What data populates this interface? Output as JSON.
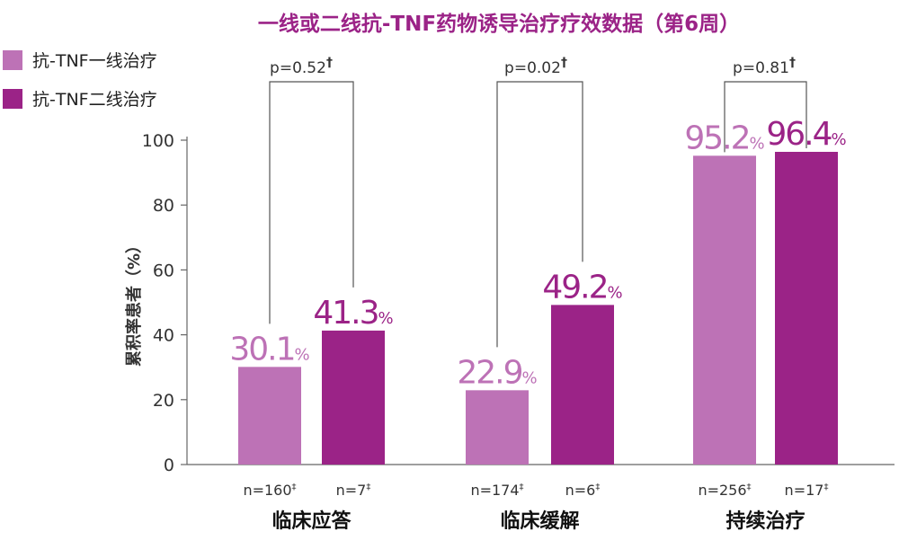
{
  "colors": {
    "first_line": "#bd72b6",
    "second_line": "#9b2387",
    "axis": "#666666",
    "text": "#222222",
    "title": "#9b2387",
    "bracket": "#555555"
  },
  "chart_data": {
    "type": "bar",
    "title": "一线或二线抗-TNF药物诱导治疗疗效数据（第6周）",
    "ylabel": "累积率患者（%）",
    "ylim": [
      0,
      100
    ],
    "yticks": [
      "0",
      "20",
      "40",
      "60",
      "80",
      "100"
    ],
    "legend_position": "top-left",
    "categories": [
      "临床应答",
      "临床缓解",
      "持续治疗"
    ],
    "series": [
      {
        "name": "抗-TNF一线治疗",
        "values": [
          30.1,
          22.9,
          95.2
        ],
        "labels": [
          "30.1",
          "22.9",
          "95.2"
        ],
        "n_labels": [
          "n=160",
          "n=174",
          "n=256"
        ]
      },
      {
        "name": "抗-TNF二线治疗",
        "values": [
          41.3,
          49.2,
          96.4
        ],
        "labels": [
          "41.3",
          "49.2",
          "96.4"
        ],
        "n_labels": [
          "n=7",
          "n=6",
          "n=17"
        ]
      }
    ],
    "percent_sign": "%",
    "n_footnote_mark": "‡",
    "p_values": [
      "p=0.52",
      "p=0.02",
      "p=0.81"
    ],
    "p_footnote_mark": "†"
  }
}
